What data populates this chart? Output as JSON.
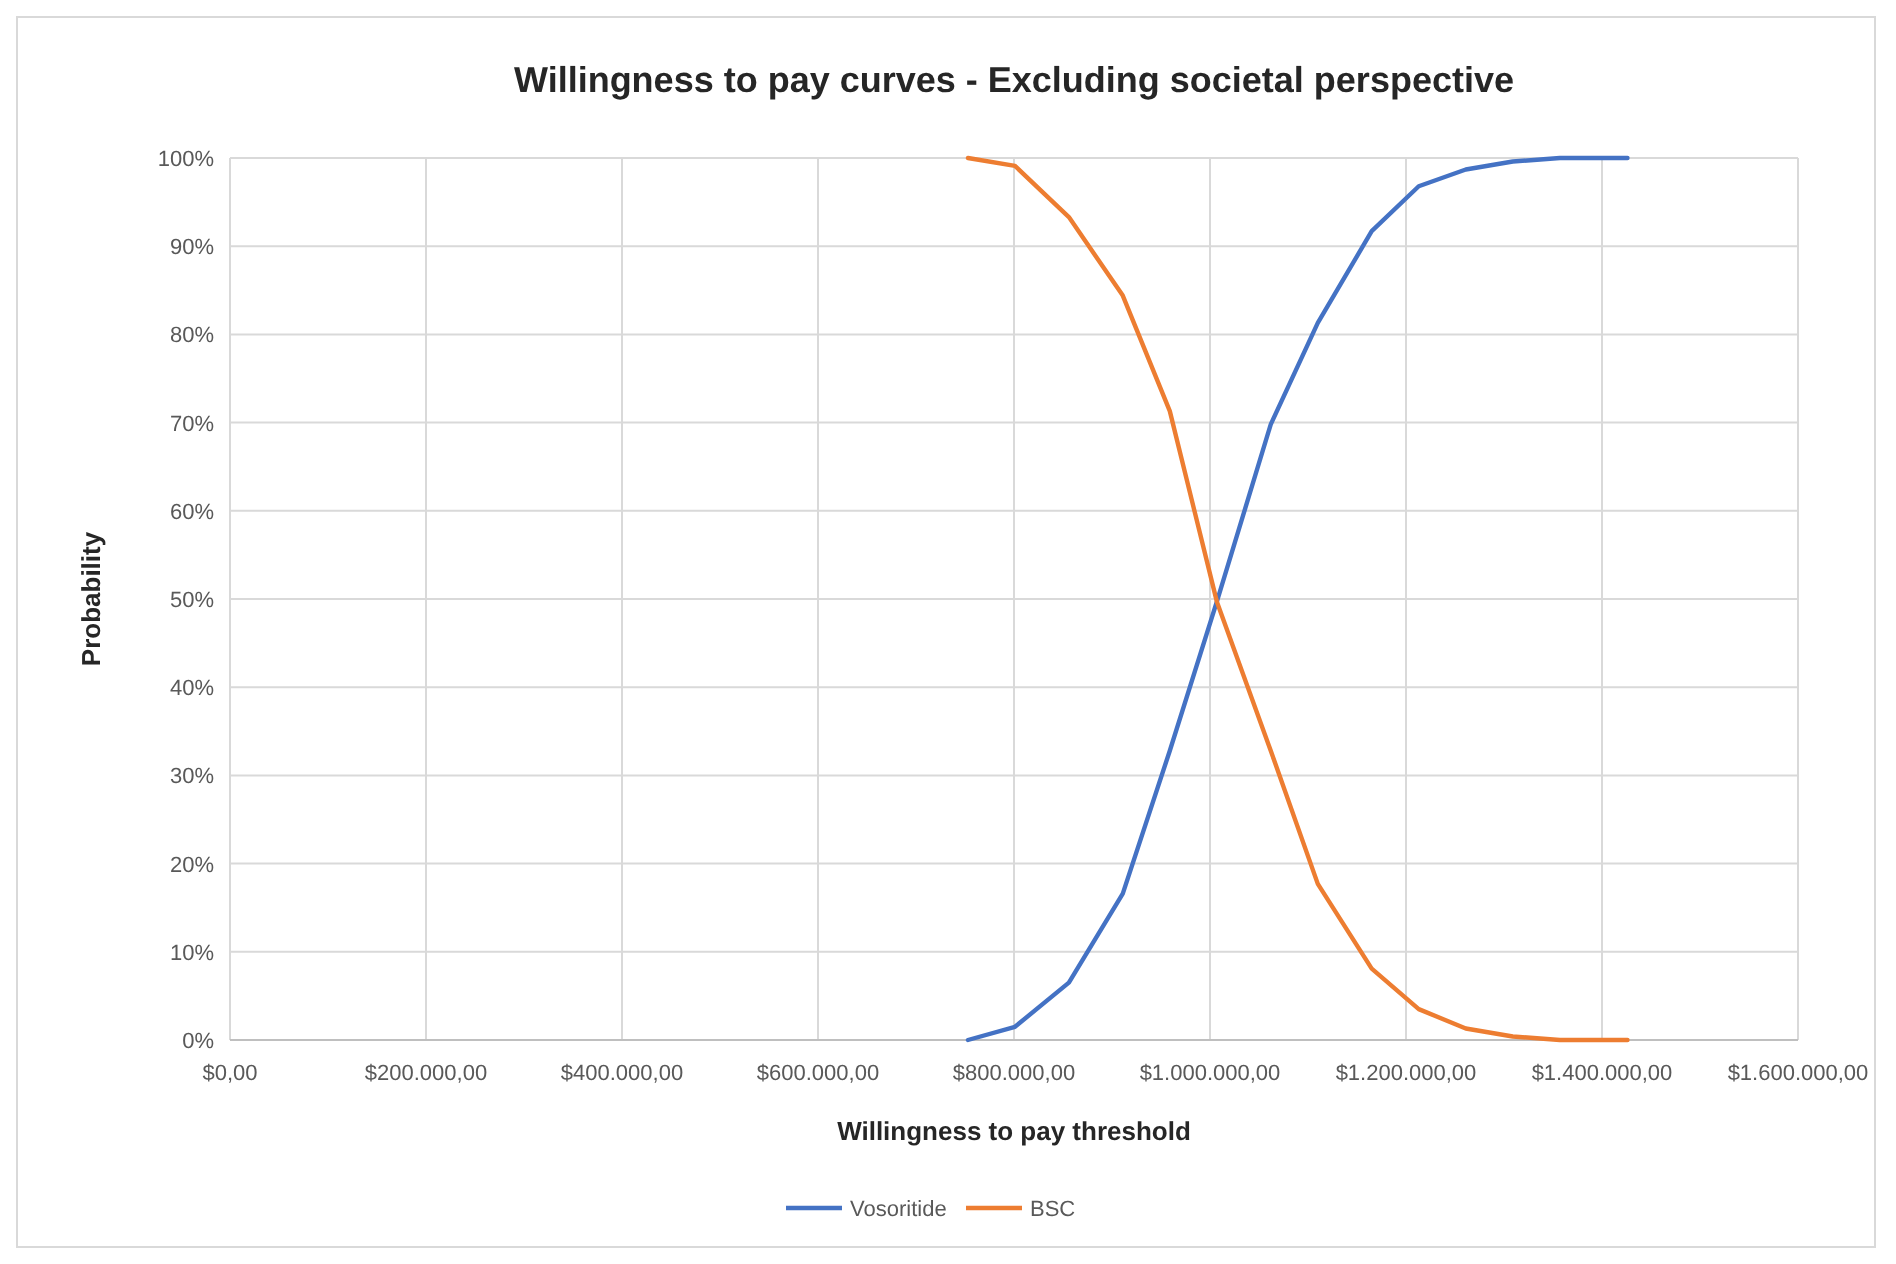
{
  "chart_data": {
    "type": "line",
    "title": "Willingness to pay curves - Excluding societal perspective",
    "xlabel": "Willingness to pay threshold",
    "ylabel": "Probability",
    "xlim": [
      0,
      1600000
    ],
    "xticks": [
      {
        "value": 0,
        "label": "$0,00"
      },
      {
        "value": 200000,
        "label": "$200.000,00"
      },
      {
        "value": 400000,
        "label": "$400.000,00"
      },
      {
        "value": 600000,
        "label": "$600.000,00"
      },
      {
        "value": 800000,
        "label": "$800.000,00"
      },
      {
        "value": 1000000,
        "label": "$1.000.000,00"
      },
      {
        "value": 1200000,
        "label": "$1.200.000,00"
      },
      {
        "value": 1400000,
        "label": "$1.400.000,00"
      },
      {
        "value": 1600000,
        "label": "$1.600.000,00"
      }
    ],
    "ylim": [
      0,
      100
    ],
    "yticks": [
      {
        "value": 0,
        "label": "0%"
      },
      {
        "value": 10,
        "label": "10%"
      },
      {
        "value": 20,
        "label": "20%"
      },
      {
        "value": 30,
        "label": "30%"
      },
      {
        "value": 40,
        "label": "40%"
      },
      {
        "value": 50,
        "label": "50%"
      },
      {
        "value": 60,
        "label": "60%"
      },
      {
        "value": 70,
        "label": "70%"
      },
      {
        "value": 80,
        "label": "80%"
      },
      {
        "value": 90,
        "label": "90%"
      },
      {
        "value": 100,
        "label": "100%"
      }
    ],
    "x": [
      753000,
      801000,
      856000,
      911000,
      959000,
      1007000,
      1062000,
      1110000,
      1165000,
      1213000,
      1261000,
      1309000,
      1357000,
      1426000
    ],
    "series": [
      {
        "name": "Vosoritide",
        "color": "#4472c4",
        "values": [
          0,
          1.5,
          6.5,
          16.6,
          32.8,
          49.7,
          69.8,
          81.3,
          91.7,
          96.8,
          98.7,
          99.6,
          100,
          100
        ]
      },
      {
        "name": "BSC",
        "color": "#ed7d31",
        "values": [
          100,
          99.1,
          93.3,
          84.4,
          71.3,
          49.7,
          32.8,
          17.7,
          8.1,
          3.5,
          1.3,
          0.4,
          0,
          0
        ]
      }
    ],
    "grid": true,
    "legend": "bottom",
    "marker": "none",
    "line_style": "solid"
  }
}
